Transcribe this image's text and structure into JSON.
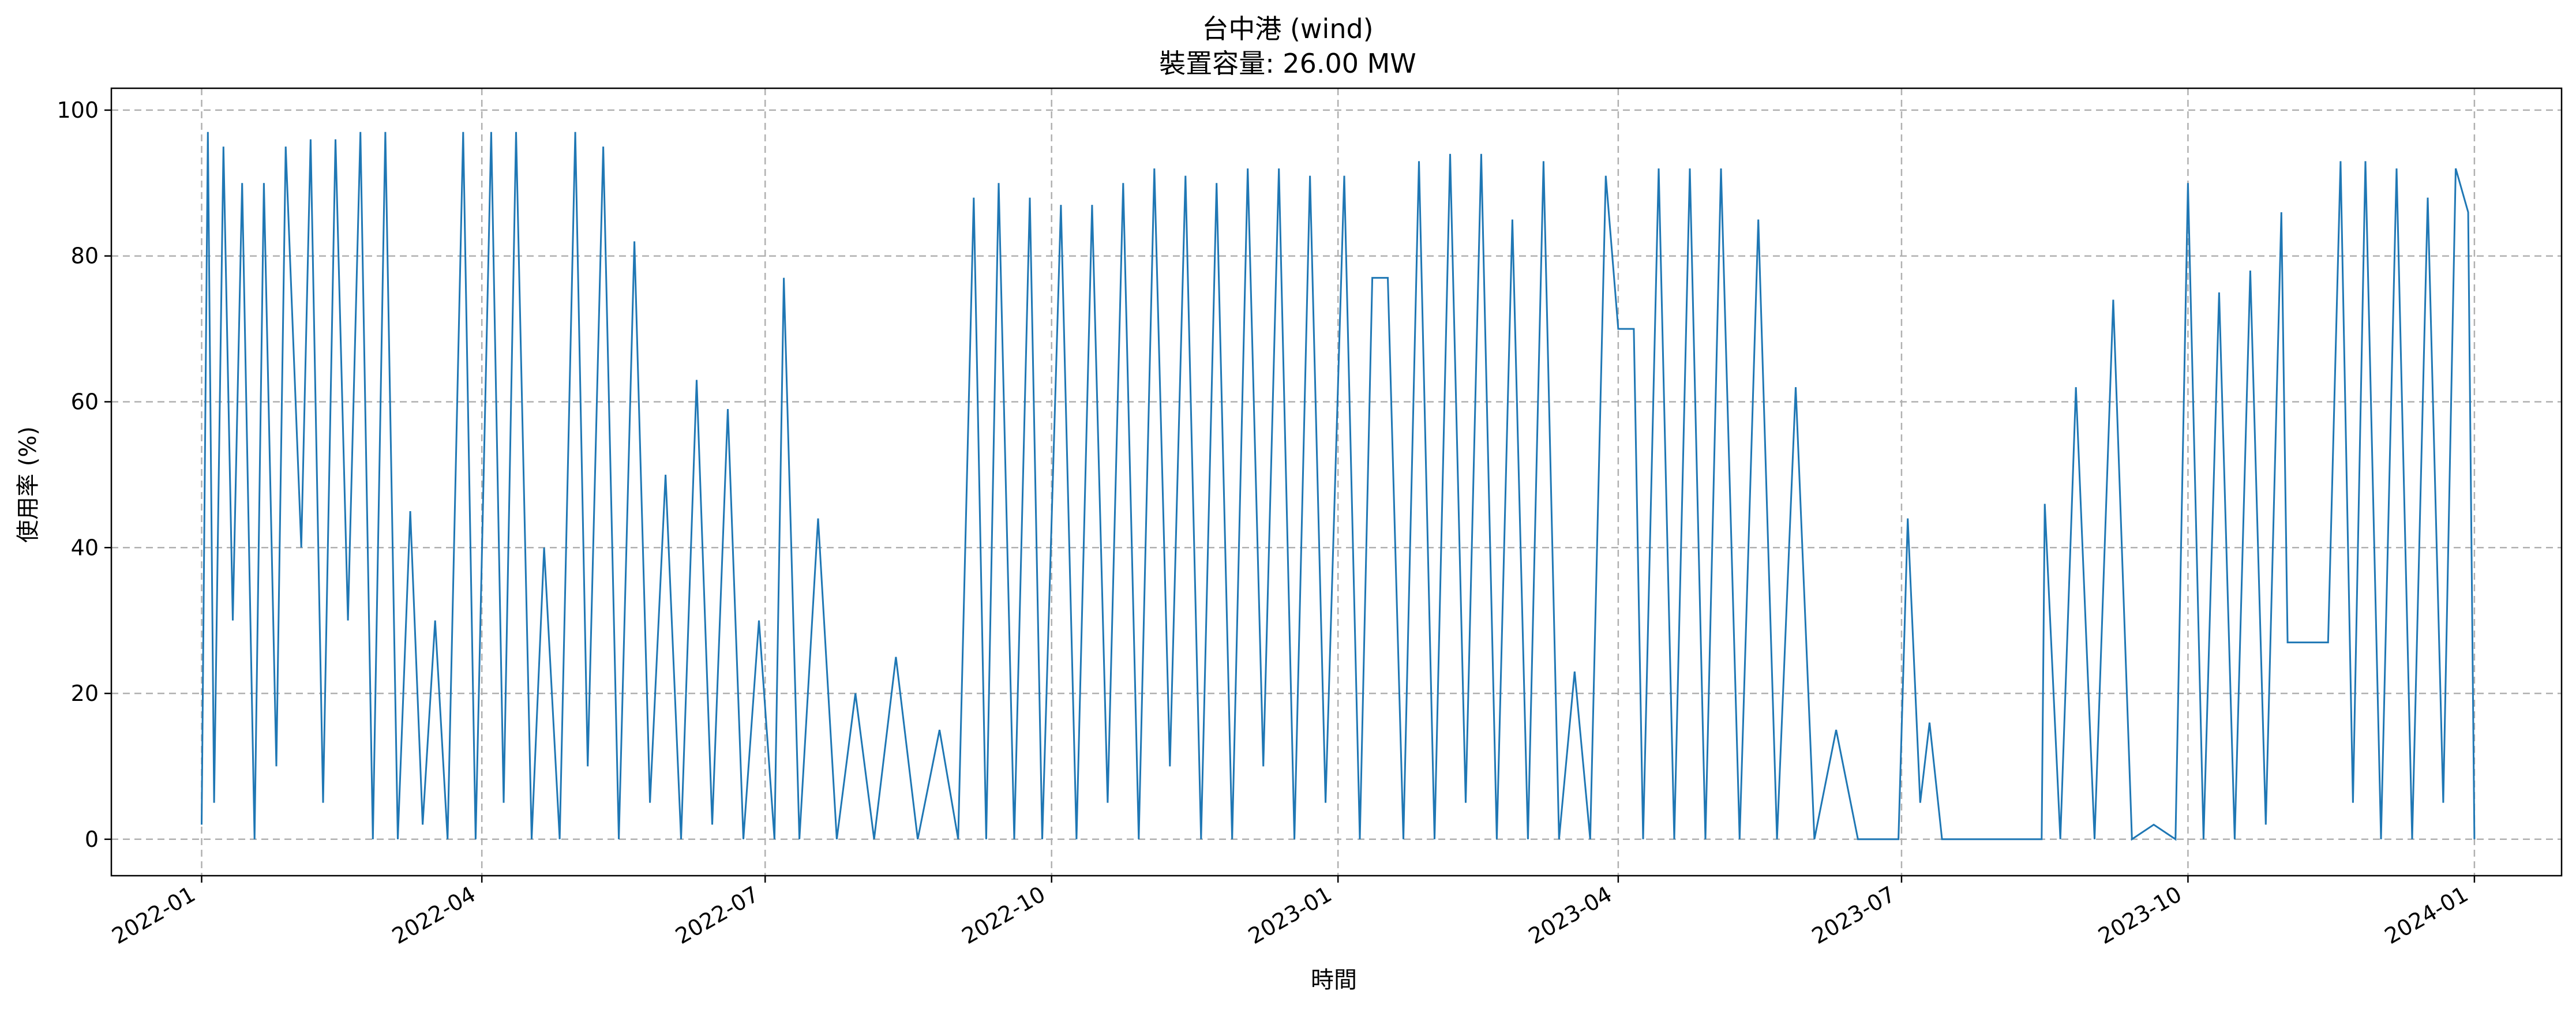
{
  "chart_data": {
    "type": "line",
    "title": "台中港 (wind)",
    "subtitle": "裝置容量: 26.00 MW",
    "xlabel": "時間",
    "ylabel": "使用率 (%)",
    "x_range": [
      "2021-12-03",
      "2024-01-29"
    ],
    "ylim": [
      -5,
      103
    ],
    "x_ticks": [
      {
        "date": "2022-01-01",
        "label": "2022-01"
      },
      {
        "date": "2022-04-01",
        "label": "2022-04"
      },
      {
        "date": "2022-07-01",
        "label": "2022-07"
      },
      {
        "date": "2022-10-01",
        "label": "2022-10"
      },
      {
        "date": "2023-01-01",
        "label": "2023-01"
      },
      {
        "date": "2023-04-01",
        "label": "2023-04"
      },
      {
        "date": "2023-07-01",
        "label": "2023-07"
      },
      {
        "date": "2023-10-01",
        "label": "2023-10"
      },
      {
        "date": "2024-01-01",
        "label": "2024-01"
      }
    ],
    "y_ticks": [
      0,
      20,
      40,
      60,
      80,
      100
    ],
    "grid": true,
    "series": [
      {
        "color": "#1f77b4",
        "points": [
          [
            "2022-01-01",
            2
          ],
          [
            "2022-01-03",
            97
          ],
          [
            "2022-01-05",
            5
          ],
          [
            "2022-01-08",
            95
          ],
          [
            "2022-01-11",
            30
          ],
          [
            "2022-01-14",
            90
          ],
          [
            "2022-01-18",
            0
          ],
          [
            "2022-01-21",
            90
          ],
          [
            "2022-01-25",
            10
          ],
          [
            "2022-01-28",
            95
          ],
          [
            "2022-02-02",
            40
          ],
          [
            "2022-02-05",
            96
          ],
          [
            "2022-02-09",
            5
          ],
          [
            "2022-02-13",
            96
          ],
          [
            "2022-02-17",
            30
          ],
          [
            "2022-02-21",
            97
          ],
          [
            "2022-02-25",
            0
          ],
          [
            "2022-03-01",
            97
          ],
          [
            "2022-03-05",
            0
          ],
          [
            "2022-03-09",
            45
          ],
          [
            "2022-03-13",
            2
          ],
          [
            "2022-03-17",
            30
          ],
          [
            "2022-03-21",
            0
          ],
          [
            "2022-03-26",
            97
          ],
          [
            "2022-03-30",
            0
          ],
          [
            "2022-04-04",
            97
          ],
          [
            "2022-04-08",
            5
          ],
          [
            "2022-04-12",
            97
          ],
          [
            "2022-04-17",
            0
          ],
          [
            "2022-04-21",
            40
          ],
          [
            "2022-04-26",
            0
          ],
          [
            "2022-05-01",
            97
          ],
          [
            "2022-05-05",
            10
          ],
          [
            "2022-05-10",
            95
          ],
          [
            "2022-05-15",
            0
          ],
          [
            "2022-05-20",
            82
          ],
          [
            "2022-05-25",
            5
          ],
          [
            "2022-05-30",
            50
          ],
          [
            "2022-06-04",
            0
          ],
          [
            "2022-06-09",
            63
          ],
          [
            "2022-06-14",
            2
          ],
          [
            "2022-06-19",
            59
          ],
          [
            "2022-06-24",
            0
          ],
          [
            "2022-06-29",
            30
          ],
          [
            "2022-07-04",
            0
          ],
          [
            "2022-07-07",
            77
          ],
          [
            "2022-07-12",
            0
          ],
          [
            "2022-07-18",
            44
          ],
          [
            "2022-07-24",
            0
          ],
          [
            "2022-07-30",
            20
          ],
          [
            "2022-08-05",
            0
          ],
          [
            "2022-08-12",
            25
          ],
          [
            "2022-08-19",
            0
          ],
          [
            "2022-08-26",
            15
          ],
          [
            "2022-09-01",
            0
          ],
          [
            "2022-09-06",
            88
          ],
          [
            "2022-09-10",
            0
          ],
          [
            "2022-09-14",
            90
          ],
          [
            "2022-09-19",
            0
          ],
          [
            "2022-09-24",
            88
          ],
          [
            "2022-09-28",
            0
          ],
          [
            "2022-10-04",
            87
          ],
          [
            "2022-10-09",
            0
          ],
          [
            "2022-10-14",
            87
          ],
          [
            "2022-10-19",
            5
          ],
          [
            "2022-10-24",
            90
          ],
          [
            "2022-10-29",
            0
          ],
          [
            "2022-11-03",
            92
          ],
          [
            "2022-11-08",
            10
          ],
          [
            "2022-11-13",
            91
          ],
          [
            "2022-11-18",
            0
          ],
          [
            "2022-11-23",
            90
          ],
          [
            "2022-11-28",
            0
          ],
          [
            "2022-12-03",
            92
          ],
          [
            "2022-12-08",
            10
          ],
          [
            "2022-12-13",
            92
          ],
          [
            "2022-12-18",
            0
          ],
          [
            "2022-12-23",
            91
          ],
          [
            "2022-12-28",
            5
          ],
          [
            "2023-01-03",
            91
          ],
          [
            "2023-01-08",
            0
          ],
          [
            "2023-01-12",
            77
          ],
          [
            "2023-01-17",
            77
          ],
          [
            "2023-01-22",
            0
          ],
          [
            "2023-01-27",
            93
          ],
          [
            "2023-02-01",
            0
          ],
          [
            "2023-02-06",
            94
          ],
          [
            "2023-02-11",
            5
          ],
          [
            "2023-02-16",
            94
          ],
          [
            "2023-02-21",
            0
          ],
          [
            "2023-02-26",
            85
          ],
          [
            "2023-03-03",
            0
          ],
          [
            "2023-03-08",
            93
          ],
          [
            "2023-03-13",
            0
          ],
          [
            "2023-03-18",
            23
          ],
          [
            "2023-03-23",
            0
          ],
          [
            "2023-03-28",
            91
          ],
          [
            "2023-04-01",
            70
          ],
          [
            "2023-04-06",
            70
          ],
          [
            "2023-04-09",
            0
          ],
          [
            "2023-04-14",
            92
          ],
          [
            "2023-04-19",
            0
          ],
          [
            "2023-04-24",
            92
          ],
          [
            "2023-04-29",
            0
          ],
          [
            "2023-05-04",
            92
          ],
          [
            "2023-05-10",
            0
          ],
          [
            "2023-05-16",
            85
          ],
          [
            "2023-05-22",
            0
          ],
          [
            "2023-05-28",
            62
          ],
          [
            "2023-06-03",
            0
          ],
          [
            "2023-06-10",
            15
          ],
          [
            "2023-06-17",
            0
          ],
          [
            "2023-06-24",
            0
          ],
          [
            "2023-06-30",
            0
          ],
          [
            "2023-07-03",
            44
          ],
          [
            "2023-07-07",
            5
          ],
          [
            "2023-07-10",
            16
          ],
          [
            "2023-07-14",
            0
          ],
          [
            "2023-07-25",
            0
          ],
          [
            "2023-08-06",
            0
          ],
          [
            "2023-08-15",
            0
          ],
          [
            "2023-08-16",
            46
          ],
          [
            "2023-08-21",
            0
          ],
          [
            "2023-08-26",
            62
          ],
          [
            "2023-09-01",
            0
          ],
          [
            "2023-09-07",
            74
          ],
          [
            "2023-09-13",
            0
          ],
          [
            "2023-09-20",
            2
          ],
          [
            "2023-09-27",
            0
          ],
          [
            "2023-10-01",
            90
          ],
          [
            "2023-10-06",
            0
          ],
          [
            "2023-10-11",
            75
          ],
          [
            "2023-10-16",
            0
          ],
          [
            "2023-10-21",
            78
          ],
          [
            "2023-10-26",
            2
          ],
          [
            "2023-10-31",
            86
          ],
          [
            "2023-11-02",
            27
          ],
          [
            "2023-11-15",
            27
          ],
          [
            "2023-11-19",
            93
          ],
          [
            "2023-11-23",
            5
          ],
          [
            "2023-11-27",
            93
          ],
          [
            "2023-12-02",
            0
          ],
          [
            "2023-12-07",
            92
          ],
          [
            "2023-12-12",
            0
          ],
          [
            "2023-12-17",
            88
          ],
          [
            "2023-12-22",
            5
          ],
          [
            "2023-12-26",
            92
          ],
          [
            "2023-12-30",
            86
          ],
          [
            "2024-01-01",
            0
          ]
        ]
      }
    ]
  }
}
